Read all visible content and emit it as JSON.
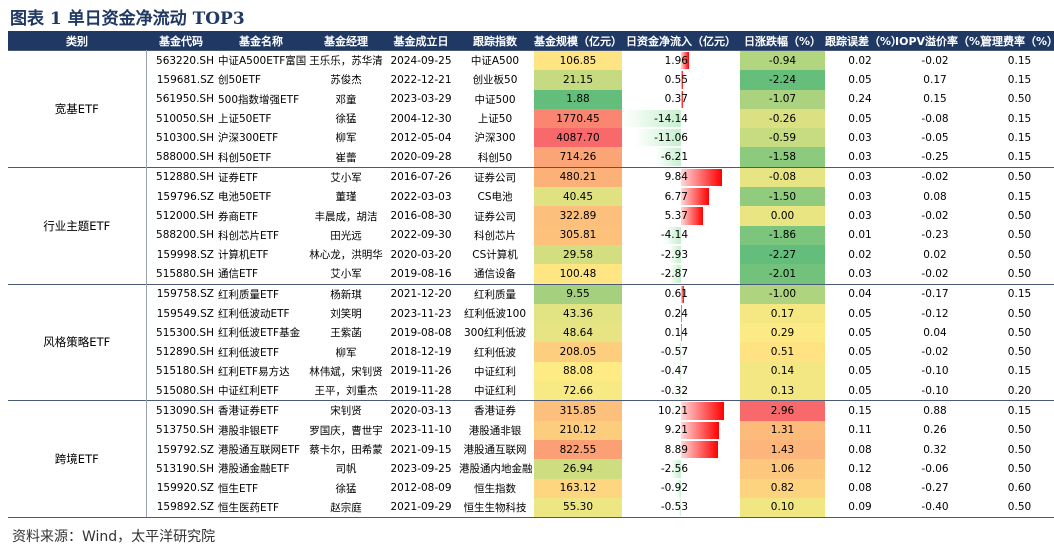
{
  "title": "图表 1 单日资金净流动 TOP3",
  "source": "资料来源：Wind，太平洋研究院",
  "columns": [
    "类别",
    "基金代码",
    "基金名称",
    "基金经理",
    "基金成立日",
    "跟踪指数",
    "基金规模（亿元）",
    "日资金净流入（亿元）",
    "日涨跌幅（%）",
    "跟踪误差（%）",
    "IOPV溢价率（%）",
    "管理费率（%）"
  ],
  "colors": {
    "header_bg": "#1f3864",
    "title": "#1f3864"
  },
  "groups": [
    {
      "category": "宽基ETF",
      "rows": [
        {
          "code": "563220.SH",
          "name": "中证A500ETF富国",
          "manager": "王乐乐，苏华清",
          "date": "2024-09-25",
          "index": "中证A500",
          "size": "106.85",
          "flow": "1.96",
          "chg": "-0.94",
          "te": "0.02",
          "iopv": "-0.02",
          "fee": "0.15"
        },
        {
          "code": "159681.SZ",
          "name": "创50ETF",
          "manager": "苏俊杰",
          "date": "2022-12-21",
          "index": "创业板50",
          "size": "21.15",
          "flow": "0.55",
          "chg": "-2.24",
          "te": "0.05",
          "iopv": "0.17",
          "fee": "0.15"
        },
        {
          "code": "561950.SH",
          "name": "500指数增强ETF",
          "manager": "邓童",
          "date": "2023-03-29",
          "index": "中证500",
          "size": "1.88",
          "flow": "0.37",
          "chg": "-1.07",
          "te": "0.24",
          "iopv": "0.15",
          "fee": "0.50"
        },
        {
          "code": "510050.SH",
          "name": "上证50ETF",
          "manager": "徐猛",
          "date": "2004-12-30",
          "index": "上证50",
          "size": "1770.45",
          "flow": "-14.14",
          "chg": "-0.26",
          "te": "0.05",
          "iopv": "-0.08",
          "fee": "0.15"
        },
        {
          "code": "510300.SH",
          "name": "沪深300ETF",
          "manager": "柳军",
          "date": "2012-05-04",
          "index": "沪深300",
          "size": "4087.70",
          "flow": "-11.06",
          "chg": "-0.59",
          "te": "0.03",
          "iopv": "-0.05",
          "fee": "0.15"
        },
        {
          "code": "588000.SH",
          "name": "科创50ETF",
          "manager": "崔蕾",
          "date": "2020-09-28",
          "index": "科创50",
          "size": "714.26",
          "flow": "-6.21",
          "chg": "-1.58",
          "te": "0.03",
          "iopv": "-0.25",
          "fee": "0.15"
        }
      ]
    },
    {
      "category": "行业主题ETF",
      "rows": [
        {
          "code": "512880.SH",
          "name": "证券ETF",
          "manager": "艾小军",
          "date": "2016-07-26",
          "index": "证券公司",
          "size": "480.21",
          "flow": "9.84",
          "chg": "-0.08",
          "te": "0.03",
          "iopv": "-0.02",
          "fee": "0.50"
        },
        {
          "code": "159796.SZ",
          "name": "电池50ETF",
          "manager": "董瑾",
          "date": "2022-03-03",
          "index": "CS电池",
          "size": "40.45",
          "flow": "6.77",
          "chg": "-1.50",
          "te": "0.03",
          "iopv": "0.08",
          "fee": "0.15"
        },
        {
          "code": "512000.SH",
          "name": "券商ETF",
          "manager": "丰晨成，胡洁",
          "date": "2016-08-30",
          "index": "证券公司",
          "size": "322.89",
          "flow": "5.37",
          "chg": "0.00",
          "te": "0.03",
          "iopv": "-0.02",
          "fee": "0.50"
        },
        {
          "code": "588200.SH",
          "name": "科创芯片ETF",
          "manager": "田光远",
          "date": "2022-09-30",
          "index": "科创芯片",
          "size": "305.81",
          "flow": "-4.14",
          "chg": "-1.86",
          "te": "0.01",
          "iopv": "-0.23",
          "fee": "0.50"
        },
        {
          "code": "159998.SZ",
          "name": "计算机ETF",
          "manager": "林心龙，洪明华",
          "date": "2020-03-20",
          "index": "CS计算机",
          "size": "29.58",
          "flow": "-2.93",
          "chg": "-2.27",
          "te": "0.02",
          "iopv": "0.02",
          "fee": "0.50"
        },
        {
          "code": "515880.SH",
          "name": "通信ETF",
          "manager": "艾小军",
          "date": "2019-08-16",
          "index": "通信设备",
          "size": "100.48",
          "flow": "-2.87",
          "chg": "-2.01",
          "te": "0.03",
          "iopv": "-0.02",
          "fee": "0.50"
        }
      ]
    },
    {
      "category": "风格策略ETF",
      "rows": [
        {
          "code": "159758.SZ",
          "name": "红利质量ETF",
          "manager": "杨新琪",
          "date": "2021-12-20",
          "index": "红利质量",
          "size": "9.55",
          "flow": "0.61",
          "chg": "-1.00",
          "te": "0.04",
          "iopv": "-0.17",
          "fee": "0.15"
        },
        {
          "code": "159549.SZ",
          "name": "红利低波动ETF",
          "manager": "刘笑明",
          "date": "2023-11-23",
          "index": "红利低波100",
          "size": "43.36",
          "flow": "0.24",
          "chg": "0.17",
          "te": "0.05",
          "iopv": "-0.12",
          "fee": "0.50"
        },
        {
          "code": "515300.SH",
          "name": "红利低波ETF基金",
          "manager": "王紫菡",
          "date": "2019-08-08",
          "index": "300红利低波",
          "size": "48.64",
          "flow": "0.14",
          "chg": "0.29",
          "te": "0.05",
          "iopv": "0.04",
          "fee": "0.50"
        },
        {
          "code": "512890.SH",
          "name": "红利低波ETF",
          "manager": "柳军",
          "date": "2018-12-19",
          "index": "红利低波",
          "size": "208.05",
          "flow": "-0.57",
          "chg": "0.51",
          "te": "0.05",
          "iopv": "-0.02",
          "fee": "0.50"
        },
        {
          "code": "515180.SH",
          "name": "红利ETF易方达",
          "manager": "林伟斌，宋钊贤",
          "date": "2019-11-26",
          "index": "中证红利",
          "size": "88.08",
          "flow": "-0.47",
          "chg": "0.14",
          "te": "0.05",
          "iopv": "-0.10",
          "fee": "0.15"
        },
        {
          "code": "515080.SH",
          "name": "中证红利ETF",
          "manager": "王平，刘重杰",
          "date": "2019-11-28",
          "index": "中证红利",
          "size": "72.66",
          "flow": "-0.32",
          "chg": "0.13",
          "te": "0.05",
          "iopv": "-0.10",
          "fee": "0.20"
        }
      ]
    },
    {
      "category": "跨境ETF",
      "rows": [
        {
          "code": "513090.SH",
          "name": "香港证券ETF",
          "manager": "宋钊贤",
          "date": "2020-03-13",
          "index": "香港证券",
          "size": "315.85",
          "flow": "10.21",
          "chg": "2.96",
          "te": "0.15",
          "iopv": "0.88",
          "fee": "0.15"
        },
        {
          "code": "513750.SH",
          "name": "港股非银ETF",
          "manager": "罗国庆，曹世宇",
          "date": "2023-11-10",
          "index": "港股通非银",
          "size": "210.12",
          "flow": "9.21",
          "chg": "1.31",
          "te": "0.11",
          "iopv": "0.26",
          "fee": "0.50"
        },
        {
          "code": "159792.SZ",
          "name": "港股通互联网ETF",
          "manager": "蔡卡尔，田希蒙",
          "date": "2021-09-15",
          "index": "港股通互联网",
          "size": "822.55",
          "flow": "8.89",
          "chg": "1.43",
          "te": "0.08",
          "iopv": "0.32",
          "fee": "0.50"
        },
        {
          "code": "513190.SH",
          "name": "港股通金融ETF",
          "manager": "司帆",
          "date": "2023-09-25",
          "index": "港股通内地金融",
          "size": "26.94",
          "flow": "-2.56",
          "chg": "1.06",
          "te": "0.12",
          "iopv": "-0.06",
          "fee": "0.50"
        },
        {
          "code": "159920.SZ",
          "name": "恒生ETF",
          "manager": "徐猛",
          "date": "2012-08-09",
          "index": "恒生指数",
          "size": "163.12",
          "flow": "-0.92",
          "chg": "0.82",
          "te": "0.08",
          "iopv": "-0.27",
          "fee": "0.60"
        },
        {
          "code": "159892.SZ",
          "name": "恒生医药ETF",
          "manager": "赵宗庭",
          "date": "2021-09-29",
          "index": "恒生生物科技",
          "size": "55.30",
          "flow": "-0.53",
          "chg": "0.10",
          "te": "0.09",
          "iopv": "-0.40",
          "fee": "0.50"
        }
      ]
    }
  ]
}
